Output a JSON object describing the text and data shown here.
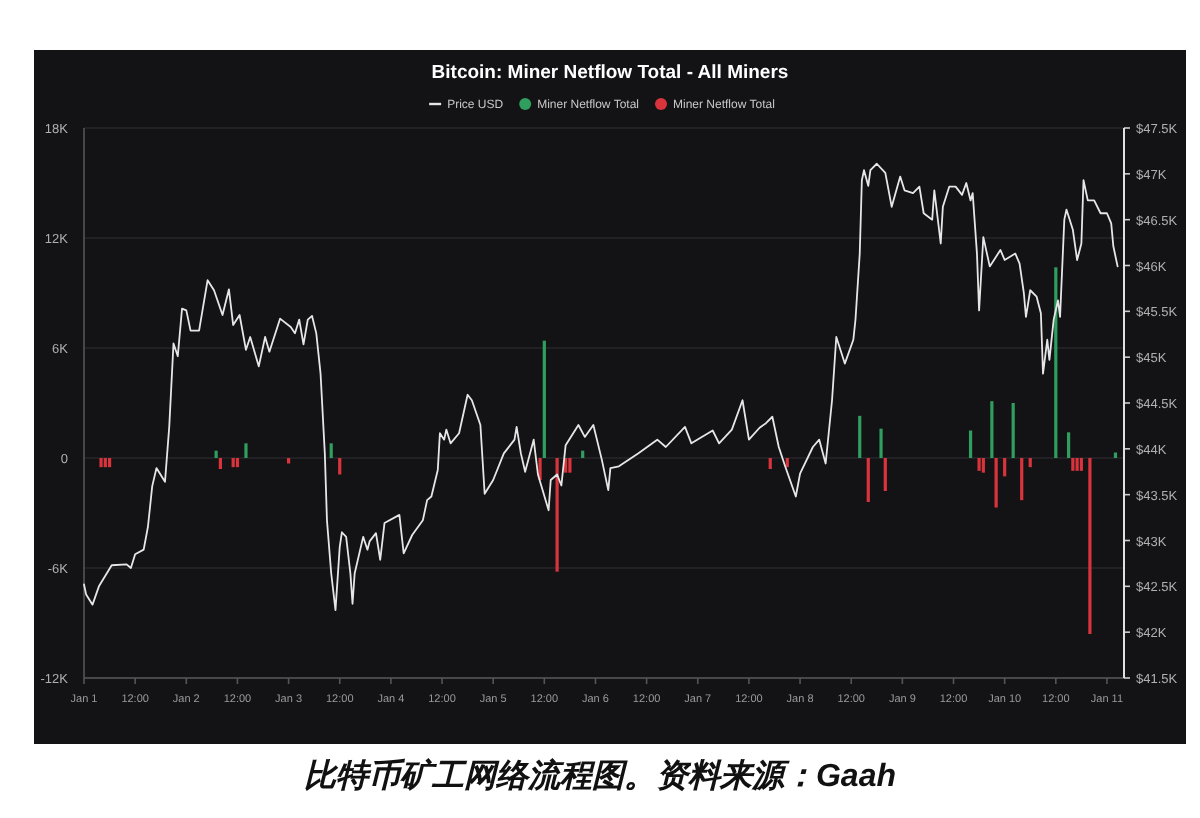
{
  "chart_data": {
    "type": "bar",
    "title": "Bitcoin: Miner Netflow Total - All Miners",
    "legend": "top",
    "grid": "y",
    "xlim": [
      "--01-01T00:00",
      "--01-11T04:00"
    ],
    "xticks": [
      {
        "value": "--01-01T00:00",
        "label": "Jan 1"
      },
      {
        "value": "--01-01T12:00",
        "label": "12:00"
      },
      {
        "value": "--01-02T00:00",
        "label": "Jan 2"
      },
      {
        "value": "--01-02T12:00",
        "label": "12:00"
      },
      {
        "value": "--01-03T00:00",
        "label": "Jan 3"
      },
      {
        "value": "--01-03T12:00",
        "label": "12:00"
      },
      {
        "value": "--01-04T00:00",
        "label": "Jan 4"
      },
      {
        "value": "--01-04T12:00",
        "label": "12:00"
      },
      {
        "value": "--01-05T00:00",
        "label": "Jan 5"
      },
      {
        "value": "--01-05T12:00",
        "label": "12:00"
      },
      {
        "value": "--01-06T00:00",
        "label": "Jan 6"
      },
      {
        "value": "--01-06T12:00",
        "label": "12:00"
      },
      {
        "value": "--01-07T00:00",
        "label": "Jan 7"
      },
      {
        "value": "--01-07T12:00",
        "label": "12:00"
      },
      {
        "value": "--01-08T00:00",
        "label": "Jan 8"
      },
      {
        "value": "--01-08T12:00",
        "label": "12:00"
      },
      {
        "value": "--01-09T00:00",
        "label": "Jan 9"
      },
      {
        "value": "--01-09T12:00",
        "label": "12:00"
      },
      {
        "value": "--01-10T00:00",
        "label": "Jan 10"
      },
      {
        "value": "--01-10T12:00",
        "label": "12:00"
      },
      {
        "value": "--01-11T00:00",
        "label": "Jan 11"
      }
    ],
    "ylim": [
      -12000,
      18000
    ],
    "yticks": [
      {
        "value": -12000,
        "label": "-12K"
      },
      {
        "value": -6000,
        "label": "-6K"
      },
      0,
      {
        "value": 6000,
        "label": "6K"
      },
      {
        "value": 12000,
        "label": "12K"
      },
      {
        "value": 18000,
        "label": "18K"
      }
    ],
    "y2lim": [
      41500,
      47500
    ],
    "y2ticks": [
      {
        "value": 41500,
        "label": "$41.5K"
      },
      {
        "value": 42000,
        "label": "$42K"
      },
      {
        "value": 42500,
        "label": "$42.5K"
      },
      {
        "value": 43000,
        "label": "$43K"
      },
      {
        "value": 43500,
        "label": "$43.5K"
      },
      {
        "value": 44000,
        "label": "$44K"
      },
      {
        "value": 44500,
        "label": "$44.5K"
      },
      {
        "value": 45000,
        "label": "$45K"
      },
      {
        "value": 45500,
        "label": "$45.5K"
      },
      {
        "value": 46000,
        "label": "$46K"
      },
      {
        "value": 46500,
        "label": "$46.5K"
      },
      {
        "value": 47000,
        "label": "$47K"
      },
      {
        "value": 47500,
        "label": "$47.5K"
      }
    ],
    "series": [
      {
        "name": "Price USD",
        "type": "line",
        "axis": "y2",
        "color": "#e6e6e6",
        "x": [
          "--01-01T00:00",
          "--01-01T00:30",
          "--01-01T02:00",
          "--01-01T03:30",
          "--01-01T06:30",
          "--01-01T10:00",
          "--01-01T11:00",
          "--01-01T12:00",
          "--01-01T14:00",
          "--01-01T15:00",
          "--01-01T16:00",
          "--01-01T17:00",
          "--01-01T19:00",
          "--01-01T20:00",
          "--01-01T21:00",
          "--01-01T22:00",
          "--01-01T23:00",
          "--01-02T00:00",
          "--01-02T01:00",
          "--01-02T03:00",
          "--01-02T05:00",
          "--01-02T06:30",
          "--01-02T08:30",
          "--01-02T10:00",
          "--01-02T11:00",
          "--01-02T12:30",
          "--01-02T14:00",
          "--01-02T15:00",
          "--01-02T17:00",
          "--01-02T18:30",
          "--01-02T19:30",
          "--01-02T22:00",
          "--01-03T00:30",
          "--01-03T01:30",
          "--01-03T02:30",
          "--01-03T03:30",
          "--01-03T04:30",
          "--01-03T05:30",
          "--01-03T06:30",
          "--01-03T07:30",
          "--01-03T08:30",
          "--01-03T09:00",
          "--01-03T10:00",
          "--01-03T11:00",
          "--01-03T12:00",
          "--01-03T12:30",
          "--01-03T13:30",
          "--01-03T14:30",
          "--01-03T15:00",
          "--01-03T15:30",
          "--01-03T17:30",
          "--01-03T18:30",
          "--01-03T19:00",
          "--01-03T20:30",
          "--01-03T21:30",
          "--01-03T22:30",
          "--01-04T02:00",
          "--01-04T03:00",
          "--01-04T05:00",
          "--01-04T07:30",
          "--01-04T08:30",
          "--01-04T09:30",
          "--01-04T11:00",
          "--01-04T11:30",
          "--01-04T12:30",
          "--01-04T13:00",
          "--01-04T14:00",
          "--01-04T16:00",
          "--01-04T18:00",
          "--01-04T19:00",
          "--01-04T21:00",
          "--01-04T22:00",
          "--01-05T00:00",
          "--01-05T02:30",
          "--01-05T05:00",
          "--01-05T05:30",
          "--01-05T06:30",
          "--01-05T07:30",
          "--01-05T09:30",
          "--01-05T10:30",
          "--01-05T13:00",
          "--01-05T13:30",
          "--01-05T15:00",
          "--01-05T16:00",
          "--01-05T17:00",
          "--01-05T20:00",
          "--01-05T21:30",
          "--01-05T23:30",
          "--01-06T01:30",
          "--01-06T03:00",
          "--01-06T03:30",
          "--01-06T05:30",
          "--01-06T10:00",
          "--01-06T14:30",
          "--01-06T16:30",
          "--01-06T21:00",
          "--01-06T22:30",
          "--01-07T03:30",
          "--01-07T05:00",
          "--01-07T08:00",
          "--01-07T10:30",
          "--01-07T12:00",
          "--01-07T14:30",
          "--01-07T16:00",
          "--01-07T17:30",
          "--01-07T19:00",
          "--01-07T20:30",
          "--01-07T23:00",
          "--01-08T00:00",
          "--01-08T03:00",
          "--01-08T04:30",
          "--01-08T06:00",
          "--01-08T07:30",
          "--01-08T08:30",
          "--01-08T10:30",
          "--01-08T12:30",
          "--01-08T13:00",
          "--01-08T14:00",
          "--01-08T14:30",
          "--01-08T15:00",
          "--01-08T16:00",
          "--01-08T16:30",
          "--01-08T18:00",
          "--01-08T20:00",
          "--01-08T21:30",
          "--01-08T23:30",
          "--01-09T00:30",
          "--01-09T02:30",
          "--01-09T04:00",
          "--01-09T05:00",
          "--01-09T07:00",
          "--01-09T07:30",
          "--01-09T09:00",
          "--01-09T09:30",
          "--01-09T11:00",
          "--01-09T12:30",
          "--01-09T14:00",
          "--01-09T15:00",
          "--01-09T16:00",
          "--01-09T16:30",
          "--01-09T17:30",
          "--01-09T18:00",
          "--01-09T19:00",
          "--01-09T20:30",
          "--01-09T21:30",
          "--01-09T23:00",
          "--01-10T00:00",
          "--01-10T02:30",
          "--01-10T03:30",
          "--01-10T04:30",
          "--01-10T05:00",
          "--01-10T06:00",
          "--01-10T07:30",
          "--01-10T08:30",
          "--01-10T09:00",
          "--01-10T10:00",
          "--01-10T10:30",
          "--01-10T11:30",
          "--01-10T12:30",
          "--01-10T13:00",
          "--01-10T14:00",
          "--01-10T14:30",
          "--01-10T16:00",
          "--01-10T17:00",
          "--01-10T18:00",
          "--01-10T18:30",
          "--01-10T19:30",
          "--01-10T21:00",
          "--01-10T22:30",
          "--01-11T00:00",
          "--01-11T01:00",
          "--01-11T01:30",
          "--01-11T02:30"
        ],
        "values": [
          42520,
          42410,
          42300,
          42500,
          42730,
          42740,
          42700,
          42850,
          42900,
          43150,
          43590,
          43790,
          43640,
          44240,
          45150,
          45010,
          45530,
          45510,
          45290,
          45290,
          45840,
          45730,
          45460,
          45740,
          45350,
          45460,
          45080,
          45220,
          44900,
          45220,
          45060,
          45420,
          45330,
          45260,
          45410,
          45140,
          45410,
          45450,
          45260,
          44820,
          43950,
          43220,
          42640,
          42240,
          42930,
          43090,
          43040,
          42640,
          42310,
          42640,
          43040,
          42900,
          42990,
          43080,
          42790,
          43190,
          43280,
          42860,
          43060,
          43220,
          43440,
          43480,
          43770,
          44170,
          44100,
          44210,
          44060,
          44170,
          44590,
          44530,
          44260,
          43510,
          43660,
          43950,
          44100,
          44240,
          43950,
          43750,
          44100,
          43720,
          43330,
          43660,
          43720,
          43600,
          44040,
          44260,
          44130,
          44260,
          43880,
          43550,
          43790,
          43810,
          43950,
          44100,
          44020,
          44240,
          44060,
          44200,
          44060,
          44210,
          44530,
          44100,
          44230,
          44280,
          44350,
          44020,
          43810,
          43480,
          43730,
          44020,
          44100,
          43840,
          44530,
          45220,
          44930,
          45190,
          45410,
          46130,
          46930,
          47040,
          46870,
          47040,
          47110,
          47010,
          46640,
          46970,
          46820,
          46790,
          46860,
          46570,
          46500,
          46820,
          46240,
          46640,
          46860,
          46860,
          46770,
          46900,
          46710,
          46790,
          46130,
          45510,
          46310,
          45990,
          46060,
          46170,
          46060,
          46130,
          46020,
          45700,
          45440,
          45730,
          45660,
          45480,
          44820,
          45190,
          44970,
          45410,
          45620,
          45440,
          46500,
          46610,
          46390,
          46060,
          46240,
          46930,
          46710,
          46710,
          46570,
          46570,
          46460,
          46210,
          45990
        ]
      },
      {
        "name": "Miner Netflow Total",
        "color": "#2f9e5f",
        "x": [
          "--01-02T07:00",
          "--01-02T14:00",
          "--01-03T10:00",
          "--01-05T12:00",
          "--01-05T21:00",
          "--01-08T14:00",
          "--01-08T19:00",
          "--01-09T16:00",
          "--01-09T21:00",
          "--01-10T02:00",
          "--01-10T12:00",
          "--01-10T15:00",
          "--01-11T02:00"
        ],
        "values": [
          400,
          800,
          800,
          6400,
          400,
          2300,
          1600,
          1500,
          3100,
          3000,
          10400,
          1400,
          300
        ]
      },
      {
        "name": "Miner Netflow Total",
        "color": "#d9343c",
        "x": [
          "--01-01T04:00",
          "--01-01T05:00",
          "--01-01T06:00",
          "--01-02T08:00",
          "--01-02T11:00",
          "--01-02T12:00",
          "--01-03T00:00",
          "--01-03T12:00",
          "--01-05T11:00",
          "--01-05T15:00",
          "--01-05T17:00",
          "--01-05T18:00",
          "--01-07T17:00",
          "--01-07T21:00",
          "--01-08T16:00",
          "--01-08T20:00",
          "--01-09T18:00",
          "--01-09T19:00",
          "--01-09T22:00",
          "--01-10T00:00",
          "--01-10T04:00",
          "--01-10T06:00",
          "--01-10T16:00",
          "--01-10T17:00",
          "--01-10T18:00",
          "--01-10T20:00"
        ],
        "values": [
          -500,
          -500,
          -500,
          -600,
          -500,
          -500,
          -300,
          -900,
          -1200,
          -6200,
          -800,
          -800,
          -600,
          -500,
          -2400,
          -1800,
          -700,
          -800,
          -2700,
          -1000,
          -2300,
          -500,
          -700,
          -700,
          -700,
          -9600
        ]
      }
    ],
    "annotations": [
      "比特币矿工网络流程图。资料来源：Gaah"
    ]
  }
}
